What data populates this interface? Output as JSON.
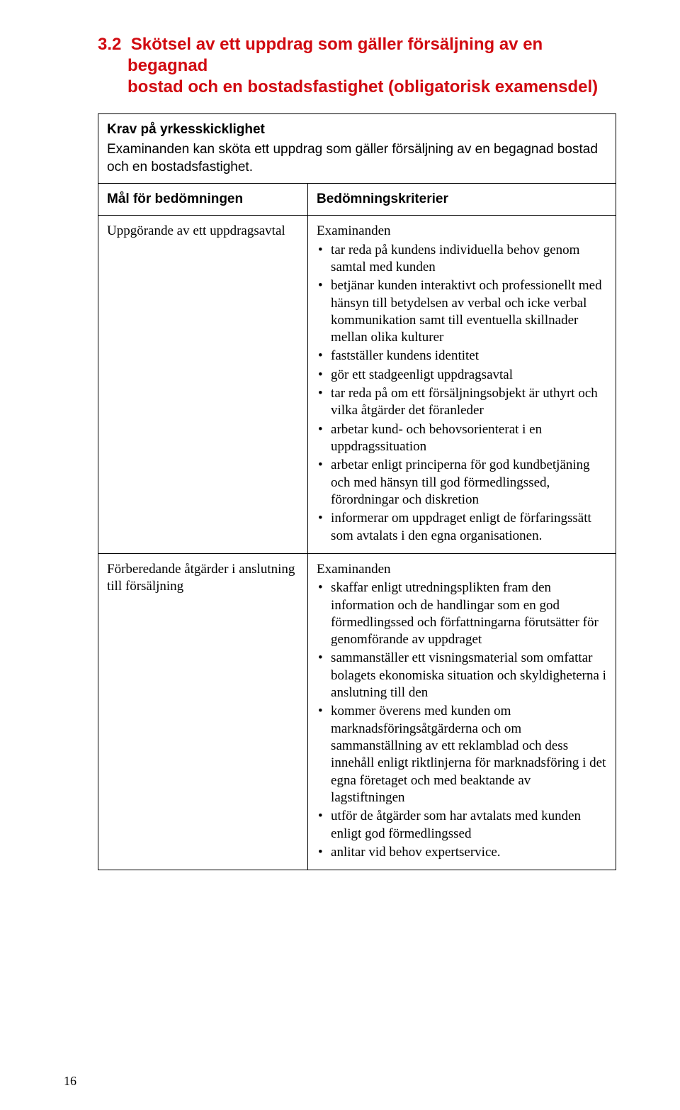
{
  "heading": {
    "number": "3.2",
    "title_line1": "Skötsel av ett uppdrag som gäller försäljning av en begagnad",
    "title_line2": "bostad och en bostadsfastighet (obligatorisk examensdel)"
  },
  "krav": {
    "label": "Krav på yrkesskicklighet",
    "text": "Examinanden kan sköta ett uppdrag som gäller försäljning av en begagnad bostad och en bostadsfastighet."
  },
  "columns": {
    "left": "Mål för bedömningen",
    "right": "Bedömningskriterier"
  },
  "row1": {
    "label": "Uppgörande av ett uppdragsavtal",
    "lead": "Examinanden",
    "items": [
      "tar reda på kundens individuella behov genom samtal med kunden",
      "betjänar kunden interaktivt och professionellt med hänsyn till betydelsen av verbal och icke verbal kommunikation samt till eventuella skillnader mellan olika kulturer",
      "fastställer kundens identitet",
      "gör ett stadgeenligt uppdragsavtal",
      "tar reda på om ett försäljningsobjekt är uthyrt och vilka åtgärder det föranleder",
      "arbetar kund- och behovsorienterat i en uppdragssituation",
      "arbetar enligt principerna för god kundbetjäning och med hänsyn till god förmedlingssed, förordningar och diskretion",
      "informerar om uppdraget enligt de förfaringssätt som avtalats i den egna organisationen."
    ]
  },
  "row2": {
    "label": "Förberedande åtgärder i anslutning till försäljning",
    "lead": "Examinanden",
    "items": [
      "skaffar enligt utredningsplikten fram den information och de handlingar som en god förmedlingssed och författningarna förutsätter för genomförande av uppdraget",
      "sammanställer ett visningsmaterial som omfattar bolagets ekonomiska situation och skyldigheterna i anslutning till den",
      "kommer överens med kunden om marknadsföringsåtgärderna och om sammanställning av ett reklamblad och dess innehåll enligt riktlinjerna för marknadsföring i det egna företaget och med beaktande av lagstiftningen",
      "utför de åtgärder som har avtalats med kunden enligt god förmedlingssed",
      "anlitar vid behov expertservice."
    ]
  },
  "page_number": "16",
  "colors": {
    "heading": "#d10a10",
    "text": "#000000",
    "border": "#000000",
    "background": "#ffffff"
  },
  "fonts": {
    "heading_family": "Trebuchet MS",
    "body_family": "Georgia",
    "heading_size_pt": 18,
    "body_size_pt": 14
  }
}
